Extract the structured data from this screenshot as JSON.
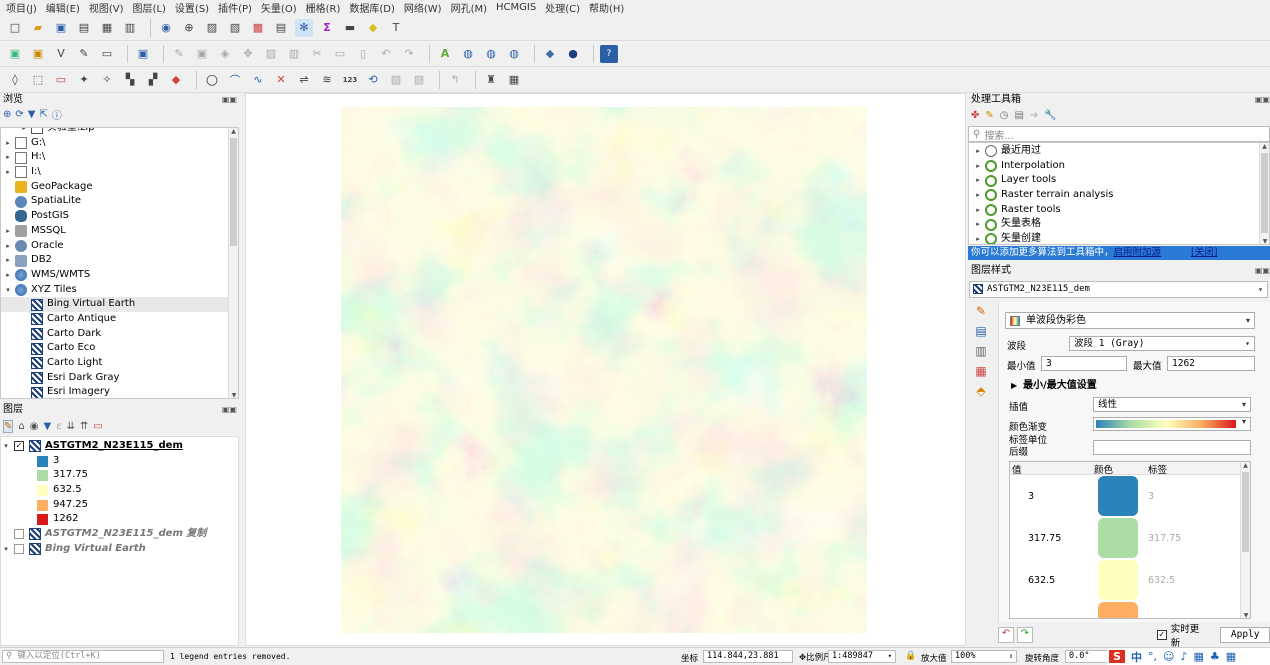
{
  "menu": [
    "项目(J)",
    "编辑(E)",
    "视图(V)",
    "图层(L)",
    "设置(S)",
    "插件(P)",
    "矢量(O)",
    "栅格(R)",
    "数据库(D)",
    "网络(W)",
    "网孔(M)",
    "HCMGIS",
    "处理(C)",
    "帮助(H)"
  ],
  "browser": {
    "title": "浏览",
    "items": [
      {
        "label": "实验室.zip",
        "icon": "zip-icon",
        "indent": 1,
        "arrow": "▸"
      },
      {
        "label": "G:\\",
        "icon": "folder-icon",
        "indent": 0,
        "arrow": "▸"
      },
      {
        "label": "H:\\",
        "icon": "folder-icon",
        "indent": 0,
        "arrow": "▸"
      },
      {
        "label": "I:\\",
        "icon": "folder-icon",
        "indent": 0,
        "arrow": "▸"
      },
      {
        "label": "GeoPackage",
        "icon": "geopackage-icon",
        "indent": 0,
        "arrow": ""
      },
      {
        "label": "SpatiaLite",
        "icon": "spatialite-icon",
        "indent": 0,
        "arrow": ""
      },
      {
        "label": "PostGIS",
        "icon": "postgis-icon",
        "indent": 0,
        "arrow": ""
      },
      {
        "label": "MSSQL",
        "icon": "mssql-icon",
        "indent": 0,
        "arrow": "▸"
      },
      {
        "label": "Oracle",
        "icon": "oracle-icon",
        "indent": 0,
        "arrow": "▸"
      },
      {
        "label": "DB2",
        "icon": "db2-icon",
        "indent": 0,
        "arrow": "▸"
      },
      {
        "label": "WMS/WMTS",
        "icon": "globe-icon",
        "indent": 0,
        "arrow": "▸"
      },
      {
        "label": "XYZ Tiles",
        "icon": "globe-icon",
        "indent": 0,
        "arrow": "▾"
      },
      {
        "label": "Bing Virtual Earth",
        "icon": "xyz-icon",
        "indent": 1,
        "arrow": ""
      },
      {
        "label": "Carto Antique",
        "icon": "xyz-icon",
        "indent": 1,
        "arrow": ""
      },
      {
        "label": "Carto Dark",
        "icon": "xyz-icon",
        "indent": 1,
        "arrow": ""
      },
      {
        "label": "Carto Eco",
        "icon": "xyz-icon",
        "indent": 1,
        "arrow": ""
      },
      {
        "label": "Carto Light",
        "icon": "xyz-icon",
        "indent": 1,
        "arrow": ""
      },
      {
        "label": "Esri Dark Gray",
        "icon": "xyz-icon",
        "indent": 1,
        "arrow": ""
      },
      {
        "label": "Esri Imagery",
        "icon": "xyz-icon",
        "indent": 1,
        "arrow": ""
      }
    ]
  },
  "layers": {
    "title": "图层",
    "main_layer": "ASTGTM2_N23E115_dem",
    "legend": [
      {
        "label": "3",
        "color": "#2b83ba"
      },
      {
        "label": "317.75",
        "color": "#abdda4"
      },
      {
        "label": "632.5",
        "color": "#ffffbf"
      },
      {
        "label": "947.25",
        "color": "#fdae61"
      },
      {
        "label": "1262",
        "color": "#d7191c"
      }
    ],
    "copy_layer": "ASTGTM2_N23E115_dem 复制",
    "bing_layer": "Bing Virtual Earth"
  },
  "processing": {
    "title": "处理工具箱",
    "search_placeholder": "搜索...",
    "items": [
      "最近用过",
      "Interpolation",
      "Layer tools",
      "Raster terrain analysis",
      "Raster tools",
      "矢量表格",
      "矢量创建"
    ],
    "notice_text": "你可以添加更多算法到工具箱中，",
    "notice_link": "启用附加源",
    "notice_close": "[关闭]"
  },
  "style": {
    "title": "图层样式",
    "layer_select": "ASTGTM2_N23E115_dem",
    "renderer": "单波段伪彩色",
    "band_label": "波段",
    "band_value": "波段 1 (Gray)",
    "min_label": "最小值",
    "min_value": "3",
    "max_label": "最大值",
    "max_value": "1262",
    "minmax_section": "最小/最大值设置",
    "interp_label": "插值",
    "interp_value": "线性",
    "ramp_label": "颜色渐变",
    "unit_label": "标签单位",
    "suffix_label": "后缀",
    "col_value": "值",
    "col_color": "颜色",
    "col_label": "标签",
    "entries": [
      {
        "value": "3",
        "color": "#2b83ba",
        "label": "3"
      },
      {
        "value": "317.75",
        "color": "#abdda4",
        "label": "317.75"
      },
      {
        "value": "632.5",
        "color": "#ffffbf",
        "label": "632.5"
      },
      {
        "value": "",
        "color": "#fdae61",
        "label": ""
      }
    ],
    "live_update": "实时更新",
    "apply": "Apply"
  },
  "status": {
    "locate_placeholder": "键入以定位(Ctrl+K)",
    "message": "1 legend entries removed.",
    "coord_label": "坐标",
    "coord_value": "114.844,23.881",
    "scale_label": "比例尺",
    "scale_value": "1:489847",
    "magnifier_label": "放大值",
    "magnifier_value": "100%",
    "rotation_label": "旋转角度",
    "rotation_value": "0.0°",
    "ime_text": "中"
  }
}
